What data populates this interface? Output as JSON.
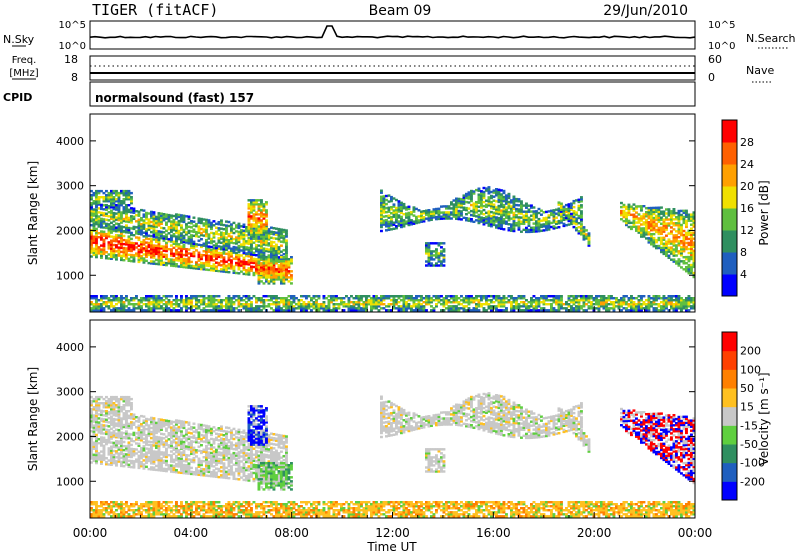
{
  "header": {
    "radar": "TIGER (fitACF)",
    "beam": "Beam 09",
    "date": "29/Jun/2010"
  },
  "strip_panels": {
    "nsky": {
      "label": "N.Sky",
      "ticks": [
        "10^5",
        "10^0"
      ]
    },
    "nsearch": {
      "label": "N.Search",
      "ticks": [
        "10^5",
        "10^0"
      ]
    },
    "freq": {
      "label_line1": "Freq.",
      "label_line2": "[MHz]",
      "ticks": [
        "18",
        "8"
      ]
    },
    "nave": {
      "label": "Nave",
      "ticks": [
        "60",
        "0"
      ]
    },
    "cpid": {
      "label": "CPID",
      "value": "normalsound (fast) 157"
    }
  },
  "chart_data": [
    {
      "type": "heatmap",
      "title": "",
      "xlabel": "Time UT",
      "ylabel": "Slant Range [km]",
      "xlim": [
        0,
        24
      ],
      "ylim": [
        180,
        4600
      ],
      "x_tick_labels": [
        "00:00",
        "04:00",
        "08:00",
        "12:00",
        "16:00",
        "20:00",
        "00:00"
      ],
      "y_ticks": [
        1000,
        2000,
        3000,
        4000
      ],
      "colorbar": {
        "label": "Power [dB]",
        "ticks": [
          "4",
          "8",
          "12",
          "16",
          "20",
          "24",
          "28"
        ],
        "colors": [
          "#0000ff",
          "#1f5fbf",
          "#2f8f60",
          "#5fbf3f",
          "#f0e000",
          "#ffa000",
          "#ff6000",
          "#ff0000"
        ]
      }
    },
    {
      "type": "heatmap",
      "title": "",
      "xlabel": "Time UT",
      "ylabel": "Slant Range [km]",
      "xlim": [
        0,
        24
      ],
      "ylim": [
        180,
        4600
      ],
      "x_tick_labels": [
        "00:00",
        "04:00",
        "08:00",
        "12:00",
        "16:00",
        "20:00",
        "00:00"
      ],
      "y_ticks": [
        1000,
        2000,
        3000,
        4000
      ],
      "colorbar": {
        "label": "Velocity [m s⁻¹]",
        "ticks": [
          "200",
          "100",
          "50",
          "15",
          "-15",
          "-50",
          "-100",
          "-200"
        ],
        "colors": [
          "#0000ff",
          "#1f5fbf",
          "#2f8f60",
          "#5fcf3f",
          "#c8c8c8",
          "#ffc020",
          "#ff8000",
          "#ff4000",
          "#ff0000"
        ]
      }
    }
  ]
}
